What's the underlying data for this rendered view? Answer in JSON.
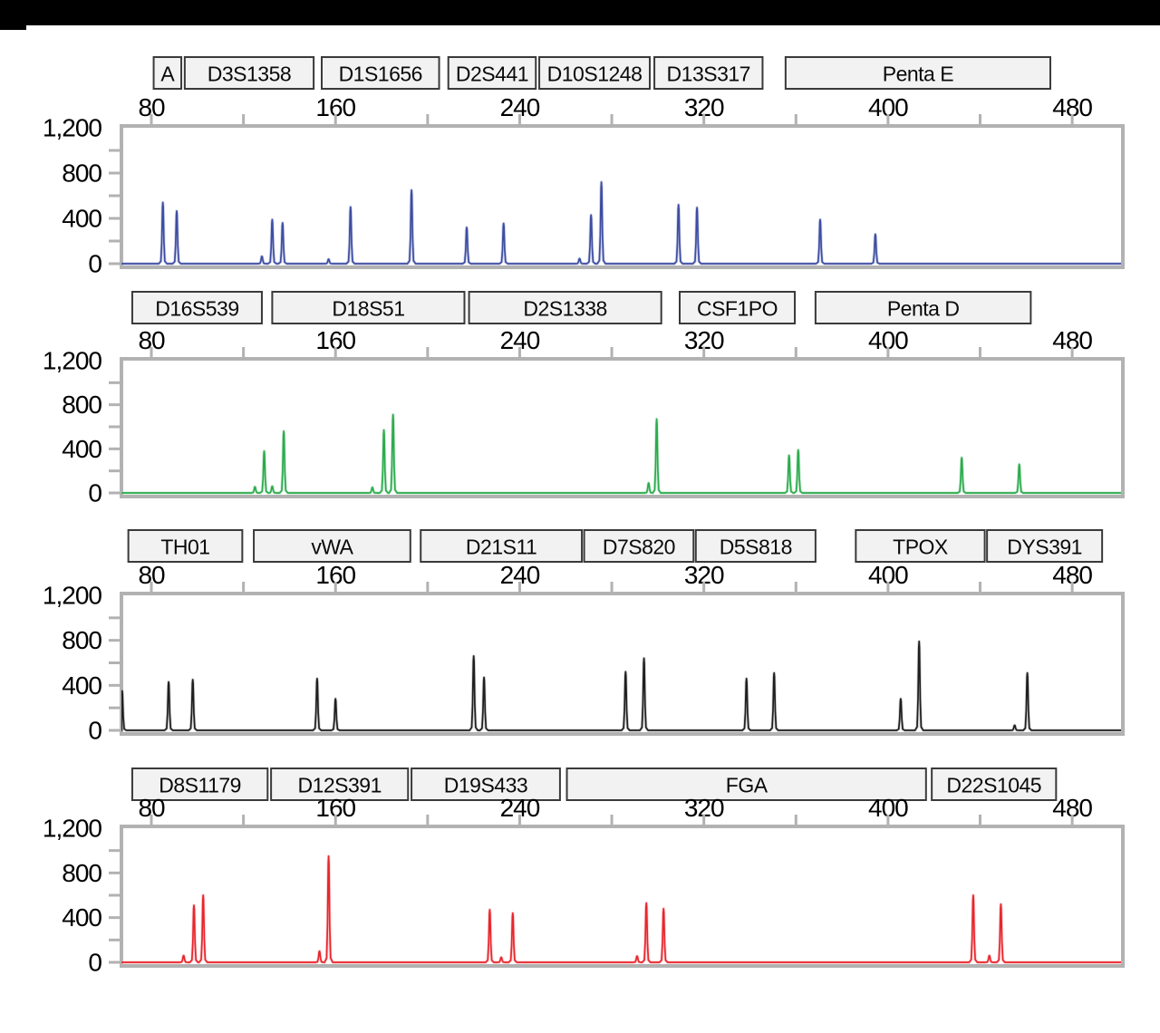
{
  "page": {
    "background": "#ffffff",
    "top_bar_color": "#000000",
    "frame_color": "#b2b2b2",
    "marker_box_fill": "#f2f2f2",
    "marker_box_border": "#3a3a3a"
  },
  "chart_data": [
    {
      "type": "line",
      "dye": "blue",
      "color": "#3D4DA1",
      "halo_color": "#A9B1D8",
      "xlim": [
        67,
        502
      ],
      "ylim": [
        0,
        1200
      ],
      "x_major_ticks": [
        80,
        160,
        240,
        320,
        400,
        480
      ],
      "x_minor_ticks": [
        120,
        200,
        280,
        360,
        440
      ],
      "y_tick_values": [
        0,
        400,
        800,
        1200
      ],
      "y_tick_labels": [
        "0",
        "400",
        "800",
        "1,200"
      ],
      "y_minor_ticks": [
        200,
        600,
        1000
      ],
      "markers": [
        {
          "label": "A",
          "span": [
            81,
            93
          ]
        },
        {
          "label": "D3S1358",
          "span": [
            94.5,
            150.5
          ]
        },
        {
          "label": "D1S1656",
          "span": [
            154,
            205
          ]
        },
        {
          "label": "D2S441",
          "span": [
            209,
            247
          ]
        },
        {
          "label": "D10S1248",
          "span": [
            248.5,
            296.5
          ]
        },
        {
          "label": "D13S317",
          "span": [
            298.5,
            345.5
          ]
        },
        {
          "label": "Penta E",
          "span": [
            355.5,
            470.5
          ]
        }
      ],
      "peaks": [
        [
          85,
          540
        ],
        [
          91,
          465
        ],
        [
          128,
          65
        ],
        [
          132.5,
          390
        ],
        [
          137,
          360
        ],
        [
          157,
          40
        ],
        [
          166.5,
          500
        ],
        [
          193,
          650
        ],
        [
          217,
          320
        ],
        [
          233,
          355
        ],
        [
          266,
          45
        ],
        [
          271,
          430
        ],
        [
          275.5,
          720
        ],
        [
          309,
          520
        ],
        [
          317,
          495
        ],
        [
          370.5,
          390
        ],
        [
          394.5,
          260
        ]
      ]
    },
    {
      "type": "line",
      "dye": "green",
      "color": "#2BAB4D",
      "halo_color": "#A8DDB5",
      "xlim": [
        67,
        502
      ],
      "ylim": [
        0,
        1200
      ],
      "x_major_ticks": [
        80,
        160,
        240,
        320,
        400,
        480
      ],
      "x_minor_ticks": [
        120,
        200,
        280,
        360,
        440
      ],
      "y_tick_values": [
        0,
        400,
        800,
        1200
      ],
      "y_tick_labels": [
        "0",
        "400",
        "800",
        "1,200"
      ],
      "y_minor_ticks": [
        200,
        600,
        1000
      ],
      "markers": [
        {
          "label": "D16S539",
          "span": [
            71.7,
            128
          ]
        },
        {
          "label": "D18S51",
          "span": [
            132.5,
            216
          ]
        },
        {
          "label": "D2S1338",
          "span": [
            218,
            301.5
          ]
        },
        {
          "label": "CSF1PO",
          "span": [
            309.5,
            359.5
          ]
        },
        {
          "label": "Penta D",
          "span": [
            368.5,
            462
          ]
        }
      ],
      "peaks": [
        [
          125,
          55
        ],
        [
          129,
          380
        ],
        [
          132.5,
          60
        ],
        [
          137.5,
          560
        ],
        [
          176,
          50
        ],
        [
          181,
          570
        ],
        [
          185,
          710
        ],
        [
          296,
          90
        ],
        [
          299.5,
          670
        ],
        [
          357,
          340
        ],
        [
          361,
          390
        ],
        [
          432,
          320
        ],
        [
          457,
          260
        ]
      ]
    },
    {
      "type": "line",
      "dye": "black",
      "color": "#1F1F1F",
      "halo_color": "#ABABAB",
      "xlim": [
        67,
        502
      ],
      "ylim": [
        0,
        1200
      ],
      "x_major_ticks": [
        80,
        160,
        240,
        320,
        400,
        480
      ],
      "x_minor_ticks": [
        120,
        200,
        280,
        360,
        440
      ],
      "y_tick_values": [
        0,
        400,
        800,
        1200
      ],
      "y_tick_labels": [
        "0",
        "400",
        "800",
        "1,200"
      ],
      "y_minor_ticks": [
        200,
        600,
        1000
      ],
      "markers": [
        {
          "label": "TH01",
          "span": [
            70,
            119.5
          ]
        },
        {
          "label": "vWA",
          "span": [
            124.5,
            192.5
          ]
        },
        {
          "label": "D21S11",
          "span": [
            197,
            267
          ]
        },
        {
          "label": "D7S820",
          "span": [
            268,
            315.5
          ]
        },
        {
          "label": "D5S818",
          "span": [
            316.5,
            368.5
          ]
        },
        {
          "label": "TPOX",
          "span": [
            386,
            442
          ]
        },
        {
          "label": "DYS391",
          "span": [
            443,
            493
          ]
        }
      ],
      "peaks": [
        [
          67.3,
          350
        ],
        [
          87.5,
          430
        ],
        [
          98,
          450
        ],
        [
          152,
          460
        ],
        [
          160,
          280
        ],
        [
          220,
          660
        ],
        [
          224.5,
          470
        ],
        [
          286,
          520
        ],
        [
          294,
          640
        ],
        [
          338.5,
          460
        ],
        [
          350.5,
          510
        ],
        [
          405.5,
          280
        ],
        [
          413.5,
          790
        ],
        [
          455,
          45
        ],
        [
          460.5,
          510
        ]
      ]
    },
    {
      "type": "line",
      "dye": "red",
      "color": "#E8262D",
      "halo_color": "#F5A9AC",
      "xlim": [
        67,
        502
      ],
      "ylim": [
        0,
        1200
      ],
      "x_major_ticks": [
        80,
        160,
        240,
        320,
        400,
        480
      ],
      "x_minor_ticks": [
        120,
        200,
        280,
        360,
        440
      ],
      "y_tick_values": [
        0,
        400,
        800,
        1200
      ],
      "y_tick_labels": [
        "0",
        "400",
        "800",
        "1,200"
      ],
      "y_minor_ticks": [
        200,
        600,
        1000
      ],
      "markers": [
        {
          "label": "D8S1179",
          "span": [
            71.7,
            130.5
          ]
        },
        {
          "label": "D12S391",
          "span": [
            132,
            191.5
          ]
        },
        {
          "label": "D19S433",
          "span": [
            193,
            257.5
          ]
        },
        {
          "label": "FGA",
          "span": [
            260.5,
            416.5
          ]
        },
        {
          "label": "D22S1045",
          "span": [
            419,
            473
          ]
        }
      ],
      "peaks": [
        [
          94,
          60
        ],
        [
          98.5,
          510
        ],
        [
          102.5,
          600
        ],
        [
          153,
          100
        ],
        [
          157,
          950
        ],
        [
          227,
          470
        ],
        [
          232,
          45
        ],
        [
          237,
          440
        ],
        [
          291,
          55
        ],
        [
          295,
          530
        ],
        [
          302.5,
          480
        ],
        [
          437,
          600
        ],
        [
          444,
          60
        ],
        [
          449,
          520
        ]
      ]
    }
  ]
}
